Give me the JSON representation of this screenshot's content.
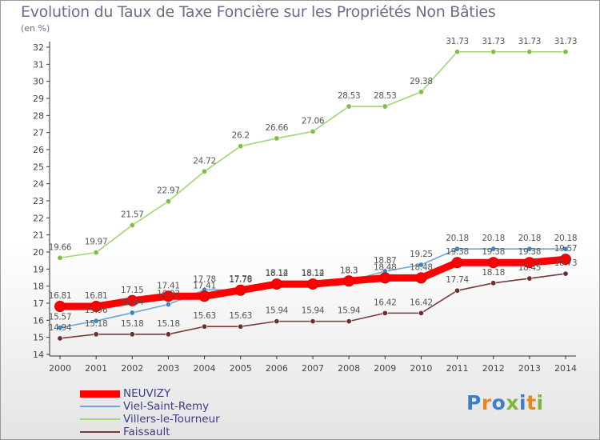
{
  "title": "Evolution du Taux de Taxe Foncière sur les Propriétés Non Bâties",
  "subtitle": "(en %)",
  "logo": {
    "text": "Proxiti",
    "letter_colors": [
      "#3d7fc4",
      "#e8861f",
      "#3d7fc4",
      "#7bb83a",
      "#3d7fc4",
      "#e8861f",
      "#7bb83a"
    ]
  },
  "chart_data": {
    "type": "line",
    "title": "Evolution du Taux de Taxe Foncière sur les Propriétés Non Bâties",
    "ylabel": "(en %)",
    "xlabel": "",
    "x": [
      "2000",
      "2001",
      "2002",
      "2003",
      "2004",
      "2005",
      "2006",
      "2007",
      "2008",
      "2009",
      "2010",
      "2011",
      "2012",
      "2013",
      "2014"
    ],
    "ylim": [
      14,
      32
    ],
    "yticks": [
      "14",
      "15",
      "16",
      "17",
      "18",
      "19",
      "20",
      "21",
      "22",
      "23",
      "24",
      "25",
      "26",
      "27",
      "28",
      "29",
      "30",
      "31",
      "32"
    ],
    "grid": false,
    "legend_position": "bottom-left",
    "series": [
      {
        "name": "NEUVIZY",
        "color": "#ff0000",
        "emphasis": true,
        "values": [
          16.81,
          16.81,
          17.15,
          17.41,
          17.41,
          17.76,
          18.12,
          18.12,
          18.3,
          18.48,
          18.48,
          19.38,
          19.38,
          19.38,
          19.57
        ],
        "labels": [
          "16.81",
          "16.81",
          "17.15",
          "17.41",
          "17.41",
          "17.76",
          "18.12",
          "18.12",
          "18.3",
          "18.48",
          "18.48",
          "19.38",
          "19.38",
          "19.38",
          "19.57"
        ]
      },
      {
        "name": "Viel-Saint-Remy",
        "color": "#6fa6d4",
        "point_color": "#3a86c8",
        "values": [
          15.57,
          15.96,
          16.44,
          16.93,
          17.78,
          17.79,
          18.14,
          18.14,
          18.3,
          18.87,
          19.25,
          20.18,
          20.18,
          20.18,
          20.18
        ],
        "labels": [
          "15.57",
          "15.96",
          "16.44",
          "16.93",
          "17.78",
          "17.79",
          "18.14",
          "18.14",
          "18.3",
          "18.87",
          "19.25",
          "20.18",
          "20.18",
          "20.18",
          "20.18"
        ]
      },
      {
        "name": "Villers-le-Tourneur",
        "color": "#9fd66f",
        "point_color": "#7cc142",
        "values": [
          19.66,
          19.97,
          21.57,
          22.97,
          24.72,
          26.2,
          26.66,
          27.06,
          28.53,
          28.53,
          29.38,
          31.73,
          31.73,
          31.73,
          31.73
        ],
        "labels": [
          "19.66",
          "19.97",
          "21.57",
          "22.97",
          "24.72",
          "26.2",
          "26.66",
          "27.06",
          "28.53",
          "28.53",
          "29.38",
          "31.73",
          "31.73",
          "31.73",
          "31.73"
        ]
      },
      {
        "name": "Faissault",
        "color": "#7a3a3a",
        "point_color": "#6b2f2f",
        "values": [
          14.94,
          15.18,
          15.18,
          15.18,
          15.63,
          15.63,
          15.94,
          15.94,
          15.94,
          16.42,
          16.42,
          17.74,
          18.18,
          18.45,
          18.73
        ],
        "labels": [
          "14.94",
          "15.18",
          "15.18",
          "15.18",
          "15.63",
          "15.63",
          "15.94",
          "15.94",
          "15.94",
          "16.42",
          "16.42",
          "17.74",
          "18.18",
          "18.45",
          "18.73"
        ]
      }
    ]
  }
}
